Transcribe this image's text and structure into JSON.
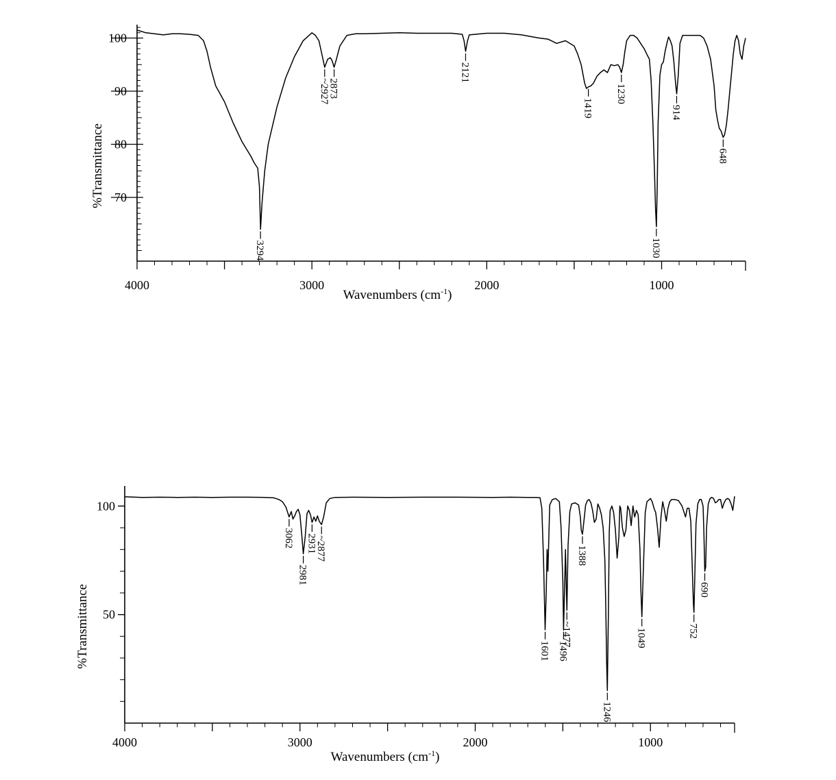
{
  "chart_data": [
    {
      "type": "line",
      "xlabel": "Wavenumbers (cm-1)",
      "xlabel_main": "Wavenumbers (cm",
      "xlabel_sup": "-1",
      "xlabel_close": ")",
      "ylabel": "%Transmittance",
      "xlim": [
        4000,
        520
      ],
      "ylim": [
        58,
        102
      ],
      "x_tick_labels": [
        "4000",
        "3000",
        "2000",
        "1000"
      ],
      "y_tick_labels": [
        "100",
        "90",
        "80",
        "70"
      ],
      "grid": false,
      "series": [
        {
          "x": [
            4000,
            3950,
            3900,
            3850,
            3800,
            3750,
            3700,
            3650,
            3620,
            3600,
            3580,
            3550,
            3500,
            3450,
            3400,
            3350,
            3330,
            3310,
            3300,
            3294,
            3285,
            3270,
            3250,
            3200,
            3150,
            3100,
            3050,
            3000,
            2980,
            2960,
            2940,
            2927,
            2910,
            2895,
            2885,
            2873,
            2860,
            2840,
            2800,
            2750,
            2700,
            2600,
            2500,
            2400,
            2300,
            2200,
            2140,
            2130,
            2121,
            2110,
            2100,
            2000,
            1900,
            1800,
            1750,
            1700,
            1650,
            1600,
            1550,
            1500,
            1480,
            1460,
            1440,
            1430,
            1419,
            1405,
            1390,
            1370,
            1350,
            1330,
            1310,
            1290,
            1270,
            1250,
            1240,
            1230,
            1220,
            1210,
            1200,
            1180,
            1160,
            1140,
            1120,
            1100,
            1085,
            1070,
            1060,
            1050,
            1040,
            1035,
            1030,
            1025,
            1020,
            1010,
            1000,
            990,
            980,
            970,
            960,
            950,
            940,
            930,
            920,
            914,
            905,
            895,
            880,
            860,
            840,
            820,
            800,
            780,
            760,
            740,
            720,
            700,
            690,
            680,
            670,
            660,
            650,
            648,
            640,
            630,
            620,
            610,
            600,
            590,
            580,
            570,
            560,
            550,
            540,
            530,
            520
          ],
          "y": [
            101.5,
            101.0,
            100.8,
            100.6,
            100.8,
            100.8,
            100.7,
            100.5,
            99.5,
            97.5,
            94.5,
            91.0,
            88.0,
            84.0,
            80.5,
            77.8,
            76.5,
            75.5,
            72.0,
            64.0,
            69.0,
            75.0,
            80.0,
            87.0,
            92.5,
            96.5,
            99.5,
            101.0,
            100.5,
            99.5,
            96.5,
            94.5,
            96.0,
            96.3,
            95.8,
            94.5,
            96.0,
            98.5,
            100.5,
            100.8,
            100.8,
            100.9,
            101.0,
            100.9,
            100.9,
            100.9,
            100.7,
            99.5,
            97.5,
            99.5,
            100.6,
            100.9,
            100.9,
            100.6,
            100.3,
            100.0,
            99.8,
            99.0,
            99.5,
            98.5,
            97.0,
            95.0,
            91.5,
            90.5,
            90.8,
            91.0,
            91.5,
            92.8,
            93.5,
            94.0,
            93.5,
            95.0,
            94.8,
            95.0,
            94.5,
            93.5,
            95.0,
            97.5,
            99.5,
            100.5,
            100.5,
            100.0,
            99.0,
            98.0,
            97.0,
            96.0,
            92.0,
            84.0,
            74.0,
            68.0,
            64.5,
            72.0,
            84.0,
            93.0,
            95.0,
            95.5,
            97.5,
            99.0,
            100.2,
            99.5,
            98.5,
            95.5,
            91.5,
            89.5,
            93.0,
            99.0,
            100.5,
            100.5,
            100.5,
            100.5,
            100.5,
            100.5,
            100.0,
            98.5,
            96.0,
            91.0,
            86.5,
            84.5,
            83.0,
            82.5,
            81.5,
            81.3,
            81.8,
            83.5,
            86.5,
            90.0,
            93.5,
            97.0,
            99.5,
            100.5,
            99.5,
            97.0,
            96.0,
            98.5,
            100.0
          ]
        }
      ],
      "peak_labels": [
        {
          "label": "3294",
          "x": 3294,
          "y": 64.0
        },
        {
          "label": "~2927",
          "x": 2927,
          "y": 94.5
        },
        {
          "label": "2873",
          "x": 2873,
          "y": 94.5
        },
        {
          "label": "2121",
          "x": 2121,
          "y": 97.5
        },
        {
          "label": "1419",
          "x": 1419,
          "y": 90.8
        },
        {
          "label": "1230",
          "x": 1230,
          "y": 93.5
        },
        {
          "label": "1030",
          "x": 1030,
          "y": 64.5
        },
        {
          "label": "914",
          "x": 914,
          "y": 89.5
        },
        {
          "label": "648",
          "x": 648,
          "y": 81.3
        }
      ]
    },
    {
      "type": "line",
      "xlabel": "Wavenumbers (cm-1)",
      "xlabel_main": "Wavenumbers (cm",
      "xlabel_sup": "-1",
      "xlabel_close": ")",
      "ylabel": "%Transmittance",
      "xlim": [
        4000,
        520
      ],
      "ylim": [
        0,
        108
      ],
      "x_tick_labels": [
        "4000",
        "3000",
        "2000",
        "1000"
      ],
      "y_tick_labels": [
        "100",
        "50"
      ],
      "grid": false,
      "series": [
        {
          "x": [
            4000,
            3900,
            3800,
            3700,
            3600,
            3500,
            3400,
            3300,
            3200,
            3150,
            3120,
            3100,
            3080,
            3062,
            3050,
            3040,
            3030,
            3020,
            3010,
            3000,
            2990,
            2981,
            2970,
            2960,
            2950,
            2940,
            2931,
            2920,
            2910,
            2900,
            2890,
            2877,
            2865,
            2850,
            2830,
            2800,
            2700,
            2500,
            2300,
            2100,
            1900,
            1800,
            1700,
            1650,
            1630,
            1620,
            1610,
            1601,
            1595,
            1590,
            1585,
            1575,
            1560,
            1540,
            1520,
            1510,
            1500,
            1496,
            1490,
            1485,
            1480,
            1477,
            1470,
            1460,
            1450,
            1430,
            1410,
            1400,
            1395,
            1388,
            1380,
            1370,
            1360,
            1350,
            1340,
            1330,
            1320,
            1310,
            1300,
            1290,
            1280,
            1270,
            1260,
            1255,
            1250,
            1246,
            1240,
            1235,
            1230,
            1220,
            1210,
            1200,
            1190,
            1180,
            1175,
            1170,
            1160,
            1150,
            1140,
            1130,
            1120,
            1110,
            1100,
            1090,
            1080,
            1070,
            1060,
            1055,
            1049,
            1040,
            1030,
            1020,
            1000,
            990,
            980,
            970,
            960,
            950,
            940,
            930,
            920,
            910,
            900,
            890,
            880,
            860,
            840,
            820,
            800,
            790,
            780,
            770,
            760,
            755,
            752,
            748,
            740,
            730,
            720,
            710,
            700,
            695,
            690,
            685,
            680,
            670,
            660,
            650,
            640,
            630,
            620,
            610,
            600,
            590,
            580,
            570,
            560,
            550,
            540,
            530,
            520
          ],
          "y": [
            104.3,
            104.0,
            104.1,
            104.0,
            104.1,
            104.0,
            104.1,
            104.1,
            104.0,
            103.8,
            103.0,
            102.0,
            99.5,
            95.0,
            97.5,
            94.0,
            95.5,
            97.5,
            98.5,
            96.0,
            87.0,
            78.0,
            86.0,
            96.5,
            98.0,
            96.0,
            92.5,
            95.0,
            93.0,
            95.5,
            93.0,
            91.5,
            95.0,
            101.5,
            103.5,
            104.0,
            104.1,
            104.0,
            104.1,
            104.1,
            104.0,
            104.1,
            104.0,
            104.0,
            103.8,
            99.0,
            75.0,
            43.0,
            60.0,
            80.0,
            70.0,
            100.5,
            103.0,
            103.5,
            102.0,
            90.0,
            65.0,
            43.0,
            62.0,
            80.0,
            62.0,
            52.0,
            82.0,
            97.5,
            101.0,
            101.5,
            100.5,
            95.0,
            89.0,
            87.0,
            93.0,
            100.5,
            102.5,
            103.0,
            101.5,
            98.0,
            92.5,
            94.0,
            101.0,
            99.0,
            96.0,
            90.0,
            75.0,
            54.0,
            28.0,
            15.0,
            52.0,
            88.0,
            98.0,
            100.0,
            97.0,
            89.0,
            76.0,
            86.0,
            100.0,
            99.0,
            90.0,
            86.0,
            89.0,
            100.0,
            98.0,
            91.0,
            100.0,
            95.0,
            98.0,
            96.0,
            80.0,
            62.0,
            49.0,
            72.0,
            97.0,
            102.0,
            103.5,
            102.0,
            99.0,
            97.0,
            90.0,
            81.0,
            95.0,
            102.0,
            98.0,
            93.0,
            99.0,
            102.0,
            103.0,
            103.0,
            102.5,
            100.0,
            95.0,
            99.0,
            99.0,
            93.0,
            68.0,
            55.0,
            51.0,
            64.0,
            92.0,
            101.0,
            103.0,
            103.0,
            100.0,
            88.0,
            70.0,
            72.0,
            90.0,
            101.0,
            103.5,
            104.0,
            103.5,
            101.5,
            102.0,
            103.0,
            103.0,
            99.0,
            101.5,
            103.0,
            103.5,
            103.0,
            101.0,
            98.0,
            104.5
          ]
        }
      ],
      "peak_labels": [
        {
          "label": "3062",
          "x": 3062,
          "y": 95.0
        },
        {
          "label": "2981",
          "x": 2981,
          "y": 78.0
        },
        {
          "label": "2931",
          "x": 2931,
          "y": 92.5
        },
        {
          "label": "~2877",
          "x": 2877,
          "y": 91.5
        },
        {
          "label": "1601",
          "x": 1601,
          "y": 43.0
        },
        {
          "label": "1496",
          "x": 1496,
          "y": 43.0
        },
        {
          "label": "~1477",
          "x": 1477,
          "y": 52.0
        },
        {
          "label": "1388",
          "x": 1388,
          "y": 87.0
        },
        {
          "label": "1246",
          "x": 1246,
          "y": 15.0
        },
        {
          "label": "1049",
          "x": 1049,
          "y": 49.0
        },
        {
          "label": "752",
          "x": 752,
          "y": 51.0
        },
        {
          "label": "690",
          "x": 690,
          "y": 70.0
        }
      ]
    }
  ]
}
